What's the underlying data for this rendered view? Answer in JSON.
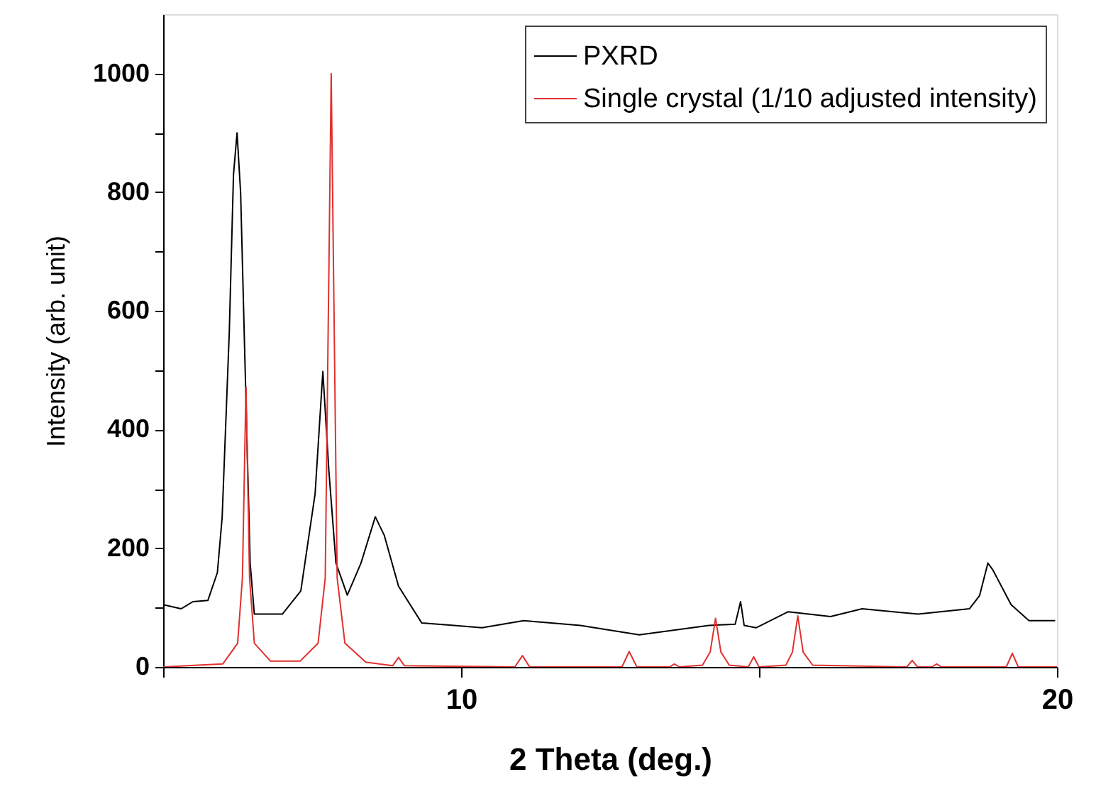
{
  "chart_data": {
    "type": "line",
    "xlabel": "2 Theta (deg.)",
    "ylabel": "Intensity (arb. unit)",
    "xlim": [
      5,
      20
    ],
    "ylim": [
      0,
      1100
    ],
    "xticks": [
      {
        "value": 5,
        "label": null
      },
      10,
      {
        "value": 15,
        "label": null
      },
      20
    ],
    "yticks": [
      0,
      {
        "value": 100,
        "label": null
      },
      200,
      {
        "value": 300,
        "label": null
      },
      400,
      {
        "value": 500,
        "label": null
      },
      600,
      {
        "value": 700,
        "label": null
      },
      800,
      {
        "value": 900,
        "label": null
      },
      1000
    ],
    "grid": false,
    "legend": "top right",
    "marker": "none",
    "line_style": "solid",
    "series": [
      {
        "name": "PXRD",
        "color": "#000000",
        "x": [
          5.0,
          5.3,
          5.5,
          5.75,
          5.91,
          5.99,
          6.11,
          6.18,
          6.24,
          6.3,
          6.38,
          6.46,
          6.53,
          7.0,
          7.31,
          7.55,
          7.68,
          7.78,
          7.9,
          8.09,
          8.32,
          8.56,
          8.71,
          8.95,
          9.34,
          9.88,
          10.35,
          11.05,
          12.0,
          12.99,
          14.16,
          14.6,
          14.69,
          14.75,
          14.95,
          15.49,
          16.2,
          16.73,
          17.67,
          18.53,
          18.7,
          18.84,
          18.92,
          19.23,
          19.53,
          19.97
        ],
        "values": [
          105,
          98,
          110,
          112,
          159,
          252,
          565,
          829,
          900,
          799,
          486,
          175,
          89,
          89,
          128,
          292,
          498,
          332,
          175,
          121,
          175,
          253,
          222,
          136,
          74,
          70,
          66,
          78,
          70,
          54,
          70,
          72,
          110,
          70,
          66,
          93,
          85,
          98,
          89,
          98,
          120,
          175,
          164,
          105,
          78,
          78
        ]
      },
      {
        "name": "Single crystal (1/10 adjusted intensity)",
        "color": "#e0302e",
        "x": [
          5.0,
          6.0,
          6.25,
          6.33,
          6.39,
          6.45,
          6.53,
          6.8,
          7.3,
          7.6,
          7.72,
          7.82,
          7.92,
          8.05,
          8.4,
          8.85,
          8.95,
          9.05,
          10.9,
          11.03,
          11.15,
          12.7,
          12.82,
          12.95,
          13.5,
          13.58,
          13.66,
          14.05,
          14.18,
          14.27,
          14.36,
          14.5,
          14.82,
          14.91,
          15.0,
          15.45,
          15.56,
          15.65,
          15.74,
          15.9,
          17.48,
          17.57,
          17.66,
          17.9,
          17.98,
          18.06,
          19.15,
          19.25,
          19.35,
          20.0
        ],
        "values": [
          0,
          5,
          40,
          150,
          472,
          150,
          40,
          10,
          10,
          40,
          150,
          1000,
          150,
          40,
          8,
          2,
          16,
          2,
          0,
          19,
          0,
          0,
          26,
          0,
          0,
          5,
          0,
          3,
          25,
          82,
          25,
          3,
          0,
          17,
          0,
          3,
          25,
          86,
          25,
          3,
          0,
          11,
          0,
          0,
          5,
          0,
          0,
          23,
          0,
          0
        ]
      }
    ]
  }
}
